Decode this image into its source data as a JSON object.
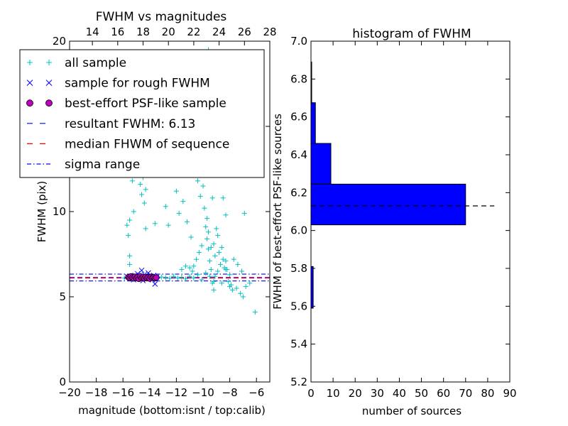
{
  "chart_data": [
    {
      "type": "scatter",
      "title": "FWHM vs magnitudes",
      "xlabel": "magnitude (bottom:isnt / top:calib)",
      "ylabel": "FWHM (pix)",
      "xlim": [
        -20,
        -5
      ],
      "ylim": [
        0,
        20
      ],
      "x_ticks": [
        "−20",
        "−18",
        "−16",
        "−14",
        "−12",
        "−10",
        "−8",
        "−6"
      ],
      "x_tick_values": [
        -20,
        -18,
        -16,
        -14,
        -12,
        -10,
        -8,
        -6
      ],
      "y_ticks": [
        "0",
        "5",
        "10",
        "15",
        "20"
      ],
      "y_tick_values": [
        0,
        5,
        10,
        15,
        20
      ],
      "top_axis": {
        "label": "calib",
        "ticks": [
          "14",
          "16",
          "18",
          "20",
          "22",
          "24",
          "26",
          "28"
        ],
        "tick_values": [
          14,
          16,
          18,
          20,
          22,
          24,
          26,
          28
        ],
        "xlim": [
          12.2,
          28
        ]
      },
      "legend": {
        "placement": "top-left",
        "entries": [
          {
            "label": "all sample",
            "marker": "plus",
            "color": "#00bfbf"
          },
          {
            "label": "sample for rough FWHM",
            "marker": "x",
            "color": "#0000ff"
          },
          {
            "label": "best-effort PSF-like sample",
            "marker": "circle",
            "color": "#bf00bf"
          },
          {
            "label": "resultant FWHM: 6.13",
            "marker": "dash",
            "color": "#0000ff"
          },
          {
            "label": "median FHWM of sequence",
            "marker": "dash",
            "color": "#ff0000"
          },
          {
            "label": "sigma range",
            "marker": "dashdot",
            "color": "#0000ff"
          }
        ]
      },
      "series": [
        {
          "name": "all sample",
          "marker": "plus",
          "color": "#00bfbf",
          "points": [
            [
              -15.9,
              6.1
            ],
            [
              -15.6,
              6.15
            ],
            [
              -15.3,
              6.2
            ],
            [
              -15.0,
              6.1
            ],
            [
              -14.6,
              6.12
            ],
            [
              -14.3,
              6.18
            ],
            [
              -14.0,
              6.1
            ],
            [
              -13.7,
              6.14
            ],
            [
              -13.4,
              6.1
            ],
            [
              -13.1,
              6.16
            ],
            [
              -12.8,
              6.12
            ],
            [
              -12.5,
              6.08
            ],
            [
              -12.2,
              6.2
            ],
            [
              -11.9,
              6.1
            ],
            [
              -11.6,
              6.15
            ],
            [
              -11.3,
              6.05
            ],
            [
              -11.0,
              6.2
            ],
            [
              -10.7,
              6.1
            ],
            [
              -10.4,
              6.3
            ],
            [
              -10.1,
              6.0
            ],
            [
              -9.8,
              6.4
            ],
            [
              -9.5,
              6.2
            ],
            [
              -9.2,
              5.9
            ],
            [
              -8.9,
              6.5
            ],
            [
              -8.6,
              5.8
            ],
            [
              -8.3,
              6.6
            ],
            [
              -8.0,
              5.6
            ],
            [
              -7.8,
              5.4
            ],
            [
              -7.5,
              5.5
            ],
            [
              -7.2,
              5.2
            ],
            [
              -7.0,
              5.0
            ],
            [
              -6.1,
              4.1
            ],
            [
              -15.7,
              9.2
            ],
            [
              -15.6,
              8.6
            ],
            [
              -15.5,
              7.4
            ],
            [
              -15.5,
              6.9
            ],
            [
              -15.4,
              12.8
            ],
            [
              -15.3,
              11.8
            ],
            [
              -15.2,
              10.0
            ],
            [
              -15.5,
              9.5
            ],
            [
              -14.6,
              11.0
            ],
            [
              -14.5,
              12.0
            ],
            [
              -14.4,
              10.5
            ],
            [
              -14.3,
              9.0
            ],
            [
              -14.3,
              11.3
            ],
            [
              -14.7,
              11.6
            ],
            [
              -13.6,
              9.3
            ],
            [
              -12.8,
              10.3
            ],
            [
              -12.6,
              9.2
            ],
            [
              -12.0,
              11.2
            ],
            [
              -11.8,
              9.9
            ],
            [
              -11.5,
              10.6
            ],
            [
              -11.2,
              9.4
            ],
            [
              -10.9,
              8.5
            ],
            [
              -10.6,
              12.6
            ],
            [
              -10.4,
              11.8
            ],
            [
              -10.2,
              10.9
            ],
            [
              -10.0,
              11.5
            ],
            [
              -9.9,
              10.2
            ],
            [
              -9.7,
              9.6
            ],
            [
              -9.6,
              8.8
            ],
            [
              -9.5,
              12.4
            ],
            [
              -9.4,
              7.9
            ],
            [
              -9.3,
              10.8
            ],
            [
              -9.2,
              8.1
            ],
            [
              -9.1,
              7.4
            ],
            [
              -9.0,
              9.0
            ],
            [
              -8.9,
              8.6
            ],
            [
              -8.8,
              7.6
            ],
            [
              -8.7,
              6.9
            ],
            [
              -8.6,
              7.9
            ],
            [
              -8.5,
              7.2
            ],
            [
              -8.4,
              6.7
            ],
            [
              -8.3,
              7.1
            ],
            [
              -8.2,
              6.6
            ],
            [
              -8.1,
              5.9
            ],
            [
              -8.0,
              6.3
            ],
            [
              -7.9,
              5.7
            ],
            [
              -9.8,
              9.1
            ],
            [
              -9.7,
              8.4
            ],
            [
              -9.6,
              7.8
            ],
            [
              -9.5,
              7.1
            ],
            [
              -9.4,
              6.6
            ],
            [
              -9.3,
              5.8
            ],
            [
              -9.2,
              5.4
            ],
            [
              -9.1,
              6.2
            ],
            [
              -10.1,
              8.0
            ],
            [
              -10.3,
              7.6
            ],
            [
              -10.5,
              7.2
            ],
            [
              -10.7,
              6.8
            ],
            [
              -10.8,
              6.5
            ],
            [
              -11.0,
              6.7
            ],
            [
              -11.3,
              6.8
            ],
            [
              -11.6,
              6.6
            ],
            [
              -9.8,
              19.3
            ],
            [
              -9.6,
              19.5
            ],
            [
              -10.8,
              13.5
            ],
            [
              -10.4,
              13.2
            ],
            [
              -9.0,
              13.0
            ],
            [
              -8.7,
              12.5
            ],
            [
              -8.5,
              10.8
            ],
            [
              -8.3,
              9.8
            ],
            [
              -6.9,
              9.9
            ],
            [
              -7.1,
              6.5
            ],
            [
              -7.4,
              6.9
            ],
            [
              -7.7,
              7.2
            ],
            [
              -6.8,
              5.6
            ],
            [
              -6.5,
              5.8
            ]
          ]
        },
        {
          "name": "sample for rough FWHM",
          "marker": "x",
          "color": "#0000ff",
          "points": [
            [
              -15.7,
              6.2
            ],
            [
              -15.4,
              6.1
            ],
            [
              -15.1,
              6.25
            ],
            [
              -14.8,
              6.15
            ],
            [
              -14.6,
              6.55
            ],
            [
              -14.4,
              6.3
            ],
            [
              -14.2,
              6.05
            ],
            [
              -14.0,
              6.2
            ],
            [
              -13.8,
              6.0
            ],
            [
              -13.6,
              5.75
            ],
            [
              -13.5,
              6.15
            ],
            [
              -15.2,
              6.0
            ],
            [
              -14.9,
              6.35
            ],
            [
              -14.5,
              5.95
            ],
            [
              -14.1,
              6.4
            ],
            [
              -13.7,
              6.25
            ]
          ]
        },
        {
          "name": "best-effort PSF-like sample",
          "marker": "circle",
          "color": "#bf00bf",
          "points": [
            [
              -15.6,
              6.15
            ],
            [
              -15.5,
              6.1
            ],
            [
              -15.4,
              6.2
            ],
            [
              -15.3,
              6.12
            ],
            [
              -15.2,
              6.08
            ],
            [
              -15.1,
              6.18
            ],
            [
              -15.0,
              6.1
            ],
            [
              -14.9,
              6.15
            ],
            [
              -14.8,
              6.05
            ],
            [
              -14.7,
              6.2
            ],
            [
              -14.6,
              6.1
            ],
            [
              -14.5,
              6.14
            ],
            [
              -14.4,
              6.08
            ],
            [
              -14.3,
              6.16
            ],
            [
              -14.2,
              6.1
            ],
            [
              -14.1,
              6.13
            ],
            [
              -14.0,
              6.07
            ],
            [
              -13.9,
              6.17
            ],
            [
              -13.8,
              6.11
            ],
            [
              -13.7,
              6.14
            ],
            [
              -13.6,
              6.09
            ],
            [
              -13.5,
              6.13
            ]
          ]
        }
      ],
      "reference_lines": [
        {
          "name": "resultant FWHM: 6.13",
          "y": 6.13,
          "style": "dashed",
          "color": "#0000ff"
        },
        {
          "name": "median FHWM of sequence",
          "y": 6.1,
          "style": "dashed",
          "color": "#ff0000"
        },
        {
          "name": "sigma range",
          "y": 6.33,
          "style": "dashdot",
          "color": "#0000ff"
        },
        {
          "name": "sigma range",
          "y": 5.93,
          "style": "dashdot",
          "color": "#0000ff"
        }
      ]
    },
    {
      "type": "bar",
      "orientation": "horizontal",
      "title": "histogram of FWHM",
      "xlabel": "number of sources",
      "ylabel": "FWHM of best-effort PSF-like sources",
      "xlim": [
        0,
        90
      ],
      "ylim": [
        5.2,
        7.0
      ],
      "x_ticks": [
        "0",
        "10",
        "20",
        "30",
        "40",
        "50",
        "60",
        "70",
        "80",
        "90"
      ],
      "x_tick_values": [
        0,
        10,
        20,
        30,
        40,
        50,
        60,
        70,
        80,
        90
      ],
      "y_ticks": [
        "5.2",
        "5.4",
        "5.6",
        "5.8",
        "6.0",
        "6.2",
        "6.4",
        "6.6",
        "6.8",
        "7.0"
      ],
      "y_tick_values": [
        5.2,
        5.4,
        5.6,
        5.8,
        6.0,
        6.2,
        6.4,
        6.6,
        6.8,
        7.0
      ],
      "bar_color": "#0000ff",
      "bins": [
        {
          "low": 5.59,
          "high": 5.81,
          "count": 1
        },
        {
          "low": 6.03,
          "high": 6.245,
          "count": 70
        },
        {
          "low": 6.245,
          "high": 6.46,
          "count": 9
        },
        {
          "low": 6.46,
          "high": 6.675,
          "count": 2
        },
        {
          "low": 6.675,
          "high": 6.89,
          "count": 0
        }
      ],
      "reference_line": {
        "y": 6.13,
        "style": "dashed",
        "color": "#000000",
        "x_range": [
          0,
          83
        ]
      }
    }
  ]
}
